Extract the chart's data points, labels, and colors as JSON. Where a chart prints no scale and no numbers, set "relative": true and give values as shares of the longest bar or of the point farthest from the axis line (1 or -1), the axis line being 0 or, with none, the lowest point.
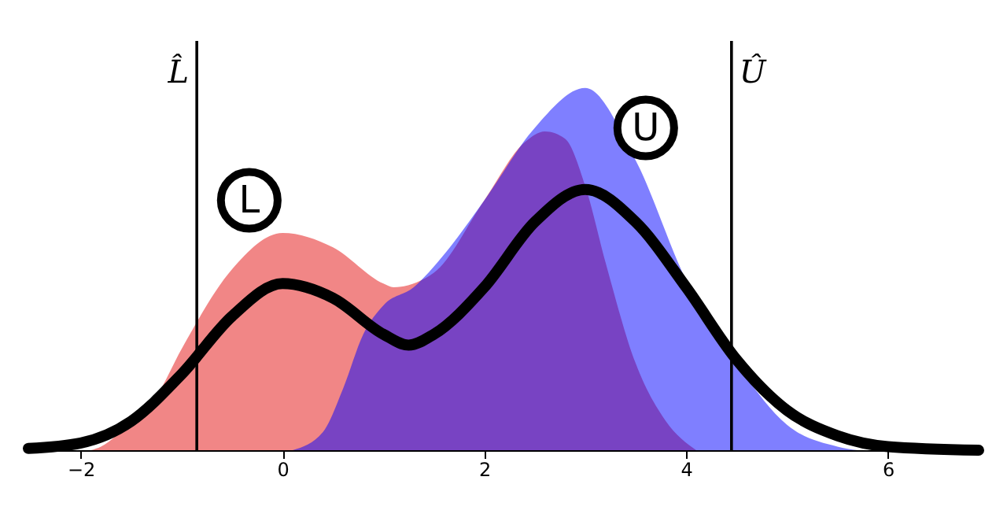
{
  "chart_data": {
    "type": "area",
    "relative": true,
    "xlim": [
      -2.52,
      6.9
    ],
    "xticks": [
      {
        "value": -2,
        "label": "−2"
      },
      0,
      2,
      4,
      6
    ],
    "grid": false,
    "series": [
      {
        "color": "#f08080",
        "x": [
          -1.9,
          -1.8,
          -1.5,
          -1.25,
          -1,
          -0.5,
          0,
          0.5,
          1,
          1.1,
          1.5,
          2,
          2.4,
          2.6,
          2.8,
          3,
          3.2,
          3.5,
          3.8,
          4.1
        ],
        "values": [
          0,
          0.01,
          0.08,
          0.15,
          0.28,
          0.5,
          0.6,
          0.56,
          0.46,
          0.45,
          0.49,
          0.69,
          0.85,
          0.88,
          0.86,
          0.73,
          0.52,
          0.24,
          0.08,
          0
        ]
      },
      {
        "color": "#0000ff",
        "x": [
          0.1,
          0.4,
          0.6,
          0.8,
          1,
          1.3,
          1.6,
          2,
          2.5,
          3,
          3.5,
          4,
          4.5,
          5,
          5.5,
          5.7
        ],
        "values": [
          0,
          0.05,
          0.17,
          0.32,
          0.4,
          0.45,
          0.54,
          0.69,
          0.89,
          1,
          0.8,
          0.47,
          0.24,
          0.07,
          0.01,
          0
        ]
      },
      {
        "type": "line",
        "color": "#000000",
        "x": [
          -2.52,
          -2,
          -1.5,
          -1,
          -0.5,
          0,
          0.5,
          1,
          1.25,
          1.5,
          2,
          2.5,
          3,
          3.5,
          4,
          4.5,
          5,
          5.5,
          6,
          6.9
        ],
        "values": [
          0.005,
          0.02,
          0.08,
          0.21,
          0.37,
          0.46,
          0.42,
          0.32,
          0.29,
          0.32,
          0.45,
          0.63,
          0.72,
          0.63,
          0.45,
          0.25,
          0.11,
          0.04,
          0.01,
          0
        ]
      }
    ],
    "ref_lines": [
      {
        "axis": "x",
        "value": -0.85,
        "label": "L̂",
        "color": "#000000"
      },
      {
        "axis": "x",
        "value": 4.45,
        "label": "Û",
        "color": "#000000"
      }
    ],
    "annotations": [
      {
        "text": "L",
        "x": -0.33,
        "y": 0.69
      },
      {
        "text": "U",
        "x": 3.6,
        "y": 0.89
      }
    ]
  }
}
